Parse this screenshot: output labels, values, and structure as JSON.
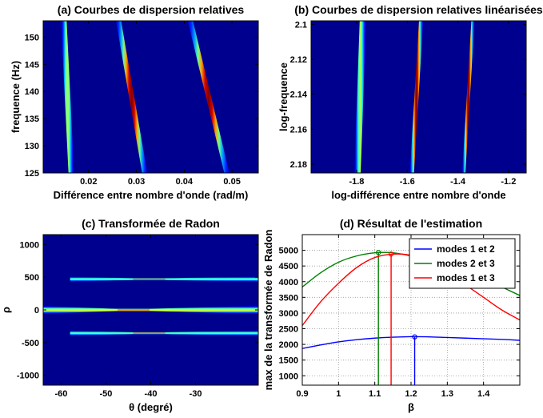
{
  "chart_data": [
    {
      "type": "heatmap",
      "title": "(a) Courbes de dispersion relatives",
      "xlabel": "Différence entre nombre d'onde (rad/m)",
      "ylabel": "frequence (Hz)",
      "xlim": [
        0.0105,
        0.0555
      ],
      "ylim": [
        125,
        153
      ],
      "y_reversed": false,
      "xticks": [
        0.02,
        0.03,
        0.04,
        0.05
      ],
      "xticklabels": [
        "0.02",
        "0.03",
        "0.04",
        "0.05"
      ],
      "yticks": [
        125,
        130,
        135,
        140,
        145,
        150
      ],
      "yticklabels": [
        "125",
        "130",
        "135",
        "140",
        "145",
        "150"
      ],
      "colormap": "jet",
      "background_color": "#00008f",
      "curves": [
        {
          "x": [
            0.0164,
            0.0148
          ],
          "y": [
            125,
            153
          ],
          "peak": 0.55,
          "width": 3.5
        },
        {
          "x": [
            0.0318,
            0.0262
          ],
          "y": [
            125,
            153
          ],
          "peak": 1.0,
          "width": 3.2
        },
        {
          "x": [
            0.049,
            0.0412
          ],
          "y": [
            125,
            153
          ],
          "peak": 1.0,
          "width": 3.2
        }
      ]
    },
    {
      "type": "heatmap",
      "title": "(b) Courbes de dispersion relatives linéarisées",
      "xlabel": "log-différence entre nombre d'onde",
      "ylabel": "log-frequence",
      "xlim": [
        -1.98,
        -1.13
      ],
      "ylim": [
        2.098,
        2.185
      ],
      "y_reversed": true,
      "xticks": [
        -1.8,
        -1.6,
        -1.4,
        -1.2
      ],
      "xticklabels": [
        "-1.8",
        "-1.6",
        "-1.4",
        "-1.2"
      ],
      "yticks": [
        2.1,
        2.12,
        2.14,
        2.16,
        2.18
      ],
      "yticklabels": [
        "2.1",
        "2.12",
        "2.14",
        "2.16",
        "2.18"
      ],
      "colormap": "jet",
      "background_color": "#00008f",
      "curves": [
        {
          "x": [
            -1.775,
            -1.797
          ],
          "y": [
            2.098,
            2.185
          ],
          "peak": 0.55,
          "width": 4.0
        },
        {
          "x": [
            -1.545,
            -1.582
          ],
          "y": [
            2.098,
            2.185
          ],
          "peak": 1.0,
          "width": 2.6
        },
        {
          "x": [
            -1.34,
            -1.377
          ],
          "y": [
            2.098,
            2.185
          ],
          "peak": 1.0,
          "width": 2.0
        }
      ]
    },
    {
      "type": "heatmap",
      "title": "(c) Transformée de Radon",
      "xlabel": "θ (degré)",
      "ylabel": "ρ",
      "xlim": [
        -64,
        -16
      ],
      "ylim": [
        -1150,
        1150
      ],
      "xticks": [
        -60,
        -50,
        -40,
        -30
      ],
      "xticklabels": [
        "-60",
        "-50",
        "-40",
        "-30"
      ],
      "yticks": [
        -1000,
        -500,
        0,
        500,
        1000
      ],
      "yticklabels": [
        "-1000",
        "-500",
        "0",
        "500",
        "1000"
      ],
      "colormap": "jet",
      "background_color": "#00008f",
      "bands": [
        {
          "rho": 470,
          "x_start": -58,
          "x_end": -16
        },
        {
          "rho": 0,
          "x_start": -64,
          "x_end": -16
        },
        {
          "rho": -355,
          "x_start": -58,
          "x_end": -16
        }
      ]
    },
    {
      "type": "line",
      "title": "(d)  Résultat de l'estimation",
      "xlabel": "β",
      "ylabel": "max de la transformée de Radon",
      "xlim": [
        0.9,
        1.5
      ],
      "ylim": [
        700,
        5500
      ],
      "grid": true,
      "xticks": [
        0.9,
        1,
        1.1,
        1.2,
        1.3,
        1.4
      ],
      "xticklabels": [
        "0.9",
        "1",
        "1.1",
        "1.2",
        "1.3",
        "1.4"
      ],
      "yticks": [
        1000,
        1500,
        2000,
        2500,
        3000,
        3500,
        4000,
        4500,
        5000
      ],
      "yticklabels": [
        "1000",
        "1500",
        "2000",
        "2500",
        "3000",
        "3500",
        "4000",
        "4500",
        "5000"
      ],
      "legend": "top-right",
      "x": [
        0.9,
        0.95,
        1.0,
        1.05,
        1.1,
        1.15,
        1.2,
        1.25,
        1.3,
        1.35,
        1.4,
        1.45,
        1.5
      ],
      "series": [
        {
          "name": "modes 1 et 2",
          "color": "#0000ff",
          "values": [
            1870,
            1980,
            2080,
            2150,
            2200,
            2230,
            2245,
            2240,
            2220,
            2200,
            2180,
            2160,
            2130
          ],
          "peak": {
            "x": 1.21,
            "y": 2240
          }
        },
        {
          "name": "modes 2 et 3",
          "color": "#008000",
          "values": [
            3830,
            4280,
            4620,
            4820,
            4920,
            4920,
            4820,
            4680,
            4500,
            4300,
            4080,
            3830,
            3560
          ],
          "peak": {
            "x": 1.11,
            "y": 4930
          }
        },
        {
          "name": "modes 1 et 3",
          "color": "#ff0000",
          "values": [
            2600,
            3350,
            3950,
            4450,
            4770,
            4880,
            4840,
            4650,
            4300,
            3900,
            3500,
            3100,
            2780
          ],
          "peak": {
            "x": 1.145,
            "y": 4880
          }
        }
      ]
    }
  ]
}
